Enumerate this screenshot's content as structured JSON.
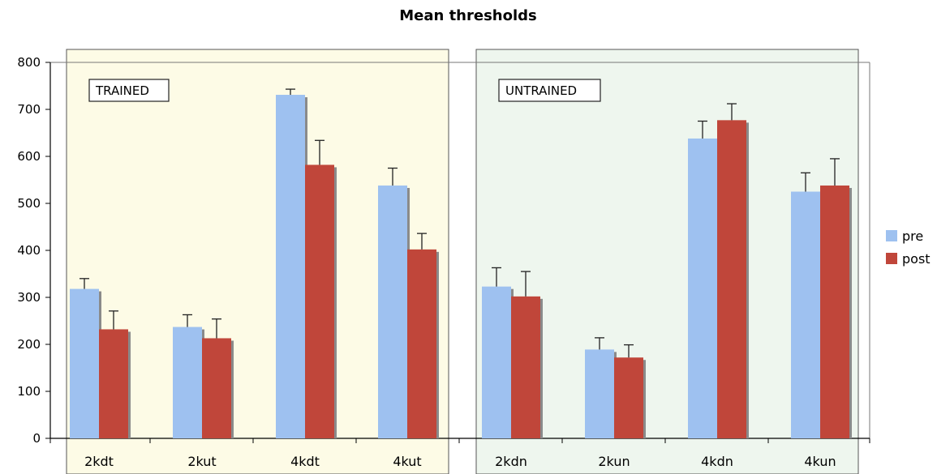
{
  "chart_data": {
    "type": "bar",
    "title": "Mean thresholds",
    "categories": [
      "2kdt",
      "2kut",
      "4kdt",
      "4kut",
      "2kdn",
      "2kun",
      "4kdn",
      "4kun"
    ],
    "series": [
      {
        "name": "pre",
        "values": [
          318,
          237,
          731,
          538,
          323,
          189,
          638,
          525
        ],
        "errors": [
          22,
          26,
          12,
          37,
          40,
          25,
          37,
          40
        ]
      },
      {
        "name": "post",
        "values": [
          232,
          213,
          582,
          402,
          302,
          172,
          677,
          538
        ],
        "errors": [
          39,
          41,
          52,
          34,
          53,
          27,
          35,
          57
        ]
      }
    ],
    "panels": [
      {
        "label": "TRAINED",
        "categories": [
          "2kdt",
          "2kut",
          "4kdt",
          "4kut"
        ],
        "color": "#fdfbe6"
      },
      {
        "label": "UNTRAINED",
        "categories": [
          "2kdn",
          "2kun",
          "4kdn",
          "4kun"
        ],
        "color": "#eef6ee"
      }
    ],
    "ylim": [
      0,
      800
    ],
    "yticks": [
      0,
      100,
      200,
      300,
      400,
      500,
      600,
      700,
      800
    ],
    "xlabel": "",
    "ylabel": "",
    "legend": {
      "position": "right",
      "entries": [
        "pre",
        "post"
      ]
    },
    "colors": {
      "pre": "#9ec1f0",
      "post": "#c0463a",
      "shadow": "#8a8a8a"
    },
    "grid": false
  }
}
